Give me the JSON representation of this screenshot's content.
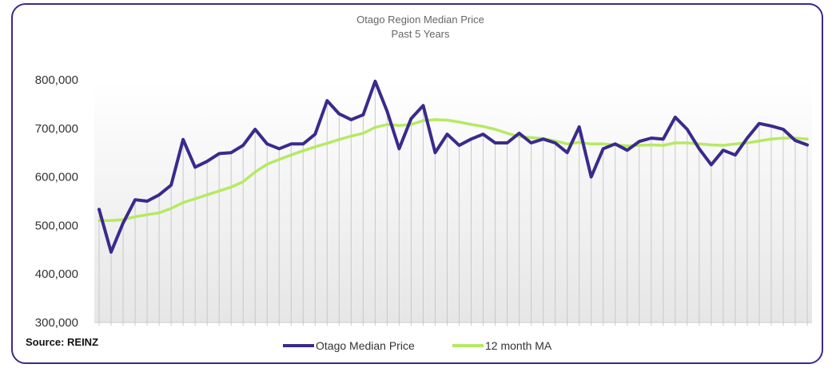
{
  "chart_data": {
    "type": "line",
    "title": "Otago Region Median Price",
    "subtitle": "Past 5 Years",
    "ylim": [
      300000,
      800000
    ],
    "yticks": [
      300000,
      400000,
      500000,
      600000,
      700000,
      800000
    ],
    "ytick_labels": [
      "300,000",
      "400,000",
      "500,000",
      "600,000",
      "700,000",
      "800,000"
    ],
    "xlabel": "",
    "ylabel": "",
    "x_tick_labels": [],
    "grid": "vertical lines at each month",
    "legend_position": "bottom-center",
    "source": "Source: REINZ",
    "series": [
      {
        "name": "Otago Median Price",
        "color": "#3a2a8c",
        "values": [
          533000,
          445000,
          505000,
          553000,
          550000,
          563000,
          583000,
          677000,
          620000,
          632000,
          648000,
          650000,
          665000,
          698000,
          668000,
          658000,
          668000,
          668000,
          688000,
          757000,
          730000,
          718000,
          728000,
          797000,
          735000,
          658000,
          720000,
          747000,
          650000,
          688000,
          665000,
          678000,
          688000,
          670000,
          670000,
          690000,
          670000,
          678000,
          670000,
          650000,
          703000,
          600000,
          658000,
          668000,
          655000,
          673000,
          680000,
          678000,
          723000,
          698000,
          658000,
          625000,
          655000,
          645000,
          680000,
          710000,
          705000,
          698000,
          675000,
          666000
        ]
      },
      {
        "name": "12 month MA",
        "color": "#b5ea63",
        "values": [
          510000,
          510000,
          512000,
          518000,
          522000,
          526000,
          535000,
          547000,
          555000,
          563000,
          571000,
          579000,
          590000,
          610000,
          626000,
          636000,
          645000,
          654000,
          662000,
          669000,
          677000,
          684000,
          690000,
          702000,
          708000,
          706000,
          708000,
          716000,
          718000,
          717000,
          713000,
          708000,
          704000,
          698000,
          690000,
          683000,
          681000,
          679000,
          674000,
          668000,
          671000,
          668000,
          668000,
          666000,
          664000,
          665000,
          666000,
          665000,
          670000,
          670000,
          668000,
          666000,
          665000,
          668000,
          670000,
          674000,
          678000,
          680000,
          680000,
          678000
        ]
      }
    ]
  }
}
